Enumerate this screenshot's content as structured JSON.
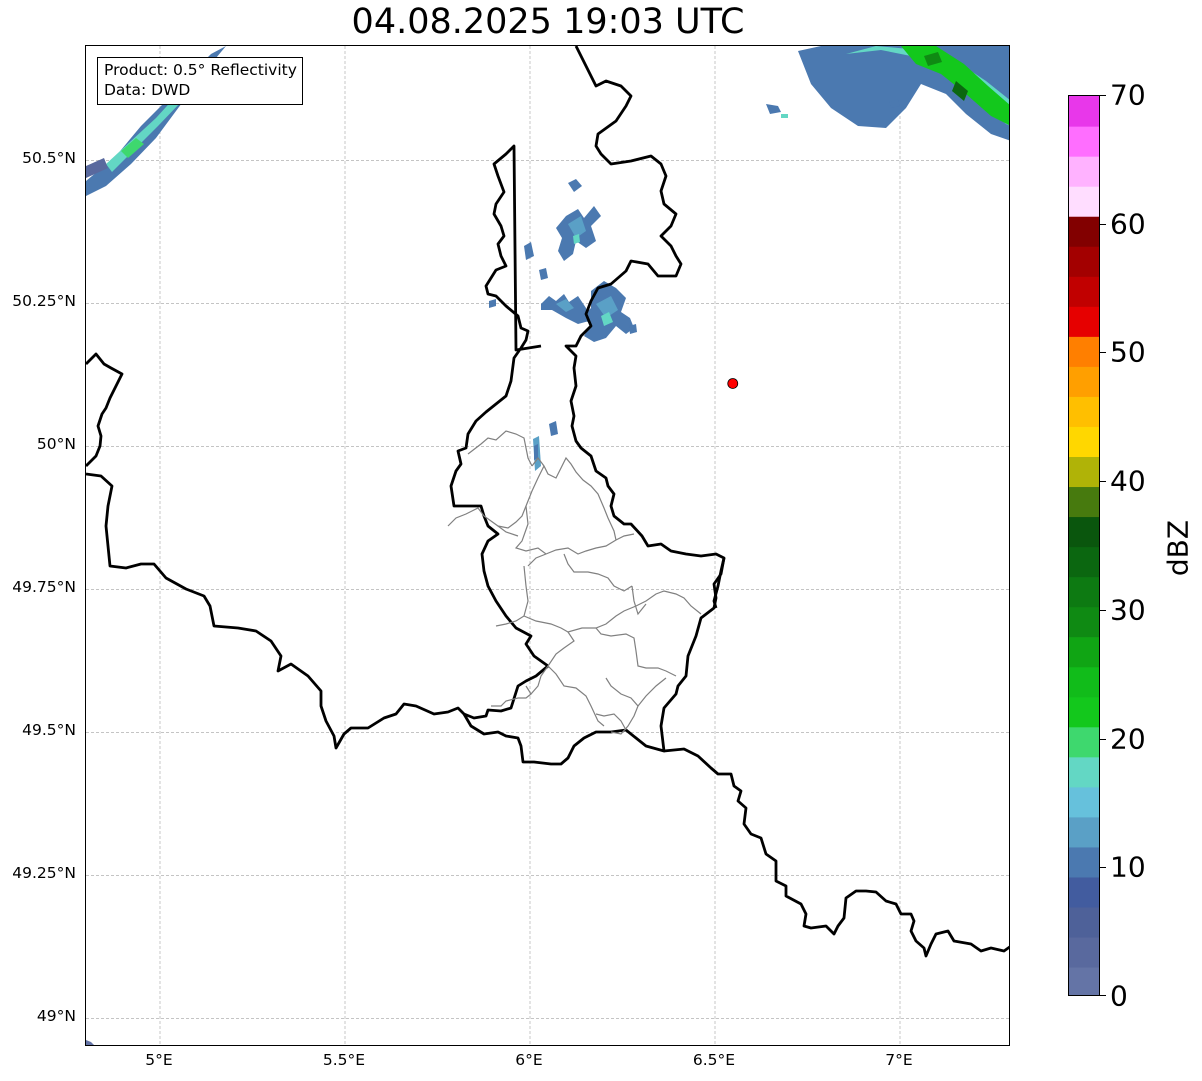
{
  "title": "04.08.2025 19:03 UTC",
  "info": {
    "product": "Product: 0.5° Reflectivity",
    "data": "Data: DWD"
  },
  "map": {
    "lon_range": [
      4.8,
      7.3
    ],
    "lat_range": [
      48.95,
      50.7
    ],
    "lat_ticks": [
      {
        "value": 50.5,
        "label": "50.5°N"
      },
      {
        "value": 50.25,
        "label": "50.25°N"
      },
      {
        "value": 50.0,
        "label": "50°N"
      },
      {
        "value": 49.75,
        "label": "49.75°N"
      },
      {
        "value": 49.5,
        "label": "49.5°N"
      },
      {
        "value": 49.25,
        "label": "49.25°N"
      },
      {
        "value": 49.0,
        "label": "49°N"
      }
    ],
    "lon_ticks": [
      {
        "value": 5.0,
        "label": "5°E"
      },
      {
        "value": 5.5,
        "label": "5.5°E"
      },
      {
        "value": 6.0,
        "label": "6°E"
      },
      {
        "value": 6.5,
        "label": "6.5°E"
      },
      {
        "value": 7.0,
        "label": "7°E"
      }
    ],
    "grid": true,
    "marker": {
      "lon": 6.548,
      "lat": 50.11,
      "color": "#ff0000"
    }
  },
  "colorbar": {
    "unit": "dBZ",
    "range": [
      0,
      70
    ],
    "ticks": [
      {
        "value": 0,
        "label": "0"
      },
      {
        "value": 10,
        "label": "10"
      },
      {
        "value": 20,
        "label": "20"
      },
      {
        "value": 30,
        "label": "30"
      },
      {
        "value": 40,
        "label": "40"
      },
      {
        "value": 50,
        "label": "50"
      },
      {
        "value": 60,
        "label": "60"
      },
      {
        "value": 70,
        "label": "70"
      }
    ],
    "colors": [
      "#6474a6",
      "#59699e",
      "#4e6199",
      "#425c9f",
      "#4b79b0",
      "#5aa0c6",
      "#66c1dc",
      "#63d7c4",
      "#3ed86e",
      "#13c81c",
      "#11bc1a",
      "#10a514",
      "#0f8a13",
      "#0d7a12",
      "#0b6710",
      "#0a560d",
      "#477a0e",
      "#b0b307",
      "#ffd700",
      "#ffbf00",
      "#ff9f00",
      "#ff7f00",
      "#e60000",
      "#c10000",
      "#a30000",
      "#820000",
      "#ffddff",
      "#ffb2ff",
      "#ff6eff",
      "#e837ea"
    ]
  }
}
